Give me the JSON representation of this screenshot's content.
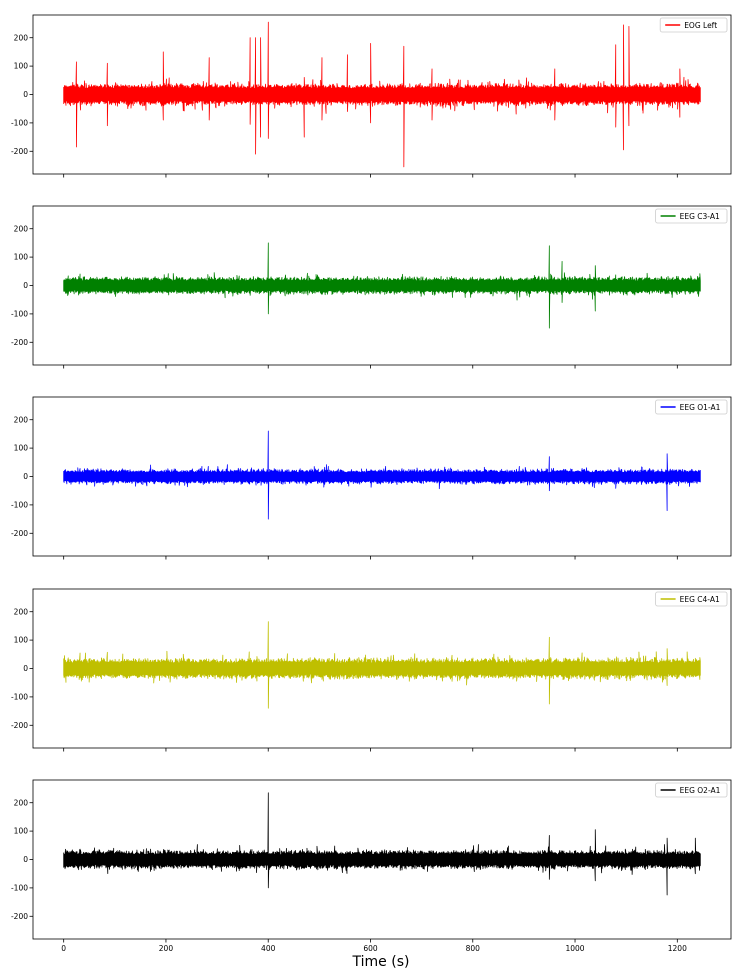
{
  "figure": {
    "xlabel": "Time (s)",
    "xticks": [
      0,
      200,
      400,
      600,
      800,
      1000,
      1200
    ]
  },
  "chart_data": [
    {
      "type": "line",
      "series": [
        {
          "name": "EOG Left",
          "color": "#ff0000",
          "x_range": [
            0,
            1245
          ],
          "baseline_amplitude": 45,
          "spikes": [
            {
              "x": 25,
              "min": -185,
              "max": 115
            },
            {
              "x": 85,
              "min": -110,
              "max": 110
            },
            {
              "x": 195,
              "min": -90,
              "max": 150
            },
            {
              "x": 285,
              "min": -90,
              "max": 130
            },
            {
              "x": 365,
              "min": -105,
              "max": 200
            },
            {
              "x": 375,
              "min": -210,
              "max": 200
            },
            {
              "x": 385,
              "min": -150,
              "max": 200
            },
            {
              "x": 400,
              "min": -155,
              "max": 255
            },
            {
              "x": 470,
              "min": -150,
              "max": 60
            },
            {
              "x": 505,
              "min": -90,
              "max": 130
            },
            {
              "x": 555,
              "min": -60,
              "max": 140
            },
            {
              "x": 600,
              "min": -100,
              "max": 180
            },
            {
              "x": 665,
              "min": -255,
              "max": 170
            },
            {
              "x": 720,
              "min": -90,
              "max": 90
            },
            {
              "x": 960,
              "min": -90,
              "max": 90
            },
            {
              "x": 1080,
              "min": -115,
              "max": 175
            },
            {
              "x": 1095,
              "min": -195,
              "max": 245
            },
            {
              "x": 1105,
              "min": -110,
              "max": 240
            },
            {
              "x": 1205,
              "min": -80,
              "max": 90
            }
          ]
        }
      ],
      "legend": "top-right",
      "ylim": [
        -280,
        280
      ],
      "yticks": [
        -200,
        -100,
        0,
        100,
        200
      ],
      "xlim": [
        -60,
        1305
      ]
    },
    {
      "type": "line",
      "series": [
        {
          "name": "EEG C3-A1",
          "color": "#008000",
          "x_range": [
            0,
            1245
          ],
          "baseline_amplitude": 35,
          "spikes": [
            {
              "x": 400,
              "min": -100,
              "max": 150
            },
            {
              "x": 950,
              "min": -150,
              "max": 140
            },
            {
              "x": 975,
              "min": -60,
              "max": 85
            },
            {
              "x": 1040,
              "min": -90,
              "max": 70
            }
          ]
        }
      ],
      "legend": "top-right",
      "ylim": [
        -280,
        280
      ],
      "yticks": [
        -200,
        -100,
        0,
        100,
        200
      ],
      "xlim": [
        -60,
        1305
      ]
    },
    {
      "type": "line",
      "series": [
        {
          "name": "EEG O1-A1",
          "color": "#0000ff",
          "x_range": [
            0,
            1245
          ],
          "baseline_amplitude": 30,
          "spikes": [
            {
              "x": 400,
              "min": -150,
              "max": 160
            },
            {
              "x": 950,
              "min": -50,
              "max": 70
            },
            {
              "x": 1180,
              "min": -120,
              "max": 80
            }
          ]
        }
      ],
      "legend": "top-right",
      "ylim": [
        -280,
        280
      ],
      "yticks": [
        -200,
        -100,
        0,
        100,
        200
      ],
      "xlim": [
        -60,
        1305
      ]
    },
    {
      "type": "line",
      "series": [
        {
          "name": "EEG C4-A1",
          "color": "#bfbf00",
          "x_range": [
            0,
            1245
          ],
          "baseline_amplitude": 42,
          "spikes": [
            {
              "x": 400,
              "min": -140,
              "max": 165
            },
            {
              "x": 950,
              "min": -125,
              "max": 110
            },
            {
              "x": 1180,
              "min": -60,
              "max": 70
            }
          ]
        }
      ],
      "legend": "top-right",
      "ylim": [
        -280,
        280
      ],
      "yticks": [
        -200,
        -100,
        0,
        100,
        200
      ],
      "xlim": [
        -60,
        1305
      ]
    },
    {
      "type": "line",
      "series": [
        {
          "name": "EEG O2-A1",
          "color": "#000000",
          "x_range": [
            0,
            1245
          ],
          "baseline_amplitude": 38,
          "spikes": [
            {
              "x": 400,
              "min": -100,
              "max": 235
            },
            {
              "x": 950,
              "min": -70,
              "max": 85
            },
            {
              "x": 1040,
              "min": -75,
              "max": 105
            },
            {
              "x": 1180,
              "min": -125,
              "max": 75
            },
            {
              "x": 1235,
              "min": -50,
              "max": 75
            }
          ]
        }
      ],
      "legend": "top-right",
      "ylim": [
        -280,
        280
      ],
      "yticks": [
        -200,
        -100,
        0,
        100,
        200
      ],
      "xlim": [
        -60,
        1305
      ]
    }
  ]
}
